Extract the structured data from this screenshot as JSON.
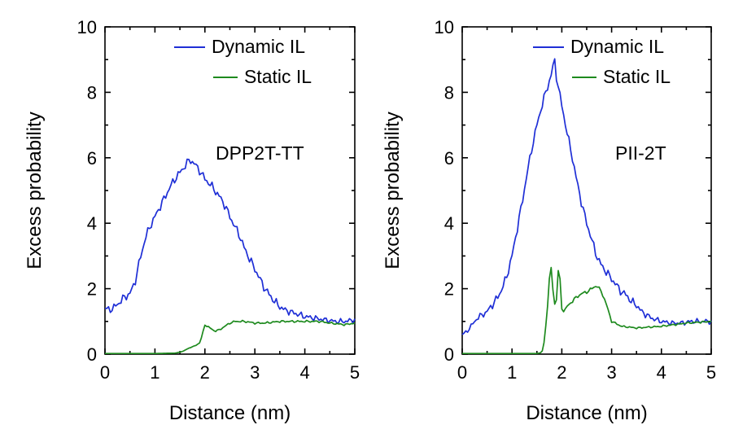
{
  "chart_data": [
    {
      "type": "line",
      "xlabel": "Distance (nm)",
      "ylabel": "Excess probability",
      "xlim": [
        0,
        5
      ],
      "ylim": [
        0,
        10
      ],
      "xticks": [
        "0",
        "1",
        "2",
        "3",
        "4",
        "5"
      ],
      "yticks": [
        "0",
        "2",
        "4",
        "6",
        "8",
        "10"
      ],
      "legend_placement": "top-right",
      "annotation": "DPP2T-TT",
      "series": [
        {
          "name": "Dynamic IL",
          "color": "#1f2fd6",
          "x": [
            0,
            0.1,
            0.2,
            0.3,
            0.4,
            0.5,
            0.6,
            0.7,
            0.8,
            0.9,
            1.0,
            1.1,
            1.2,
            1.3,
            1.4,
            1.5,
            1.6,
            1.7,
            1.8,
            1.9,
            2.0,
            2.1,
            2.2,
            2.3,
            2.4,
            2.5,
            2.6,
            2.7,
            2.8,
            2.9,
            3.0,
            3.1,
            3.2,
            3.3,
            3.4,
            3.5,
            3.6,
            3.7,
            3.8,
            3.9,
            4.0,
            4.2,
            4.4,
            4.6,
            4.8,
            5.0
          ],
          "y": [
            1.4,
            1.35,
            1.45,
            1.6,
            1.75,
            1.85,
            2.2,
            2.9,
            3.5,
            3.9,
            4.2,
            4.5,
            4.8,
            5.1,
            5.35,
            5.55,
            5.75,
            5.95,
            5.8,
            5.6,
            5.35,
            5.2,
            5.0,
            4.8,
            4.55,
            4.2,
            3.9,
            3.6,
            3.2,
            2.9,
            2.6,
            2.3,
            2.0,
            1.8,
            1.6,
            1.45,
            1.35,
            1.3,
            1.25,
            1.2,
            1.15,
            1.1,
            1.05,
            1.0,
            1.0,
            1.05
          ]
        },
        {
          "name": "Static IL",
          "color": "#1e8a1e",
          "x": [
            0,
            0.5,
            1.0,
            1.4,
            1.55,
            1.7,
            1.8,
            1.9,
            1.95,
            2.0,
            2.1,
            2.2,
            2.3,
            2.4,
            2.5,
            2.6,
            2.8,
            3.0,
            3.2,
            3.5,
            4.0,
            4.3,
            4.5,
            4.8,
            5.0
          ],
          "y": [
            0.02,
            0.02,
            0.02,
            0.03,
            0.08,
            0.2,
            0.25,
            0.35,
            0.6,
            0.9,
            0.8,
            0.7,
            0.75,
            0.85,
            0.95,
            1.0,
            1.0,
            0.95,
            0.95,
            1.0,
            1.0,
            1.0,
            0.95,
            0.9,
            0.95
          ]
        }
      ]
    },
    {
      "type": "line",
      "xlabel": "Distance (nm)",
      "ylabel": "Excess probability",
      "xlim": [
        0,
        5
      ],
      "ylim": [
        0,
        10
      ],
      "xticks": [
        "0",
        "1",
        "2",
        "3",
        "4",
        "5"
      ],
      "yticks": [
        "0",
        "2",
        "4",
        "6",
        "8",
        "10"
      ],
      "legend_placement": "top-right",
      "annotation": "PII-2T",
      "series": [
        {
          "name": "Dynamic IL",
          "color": "#1f2fd6",
          "x": [
            0,
            0.1,
            0.2,
            0.3,
            0.4,
            0.5,
            0.6,
            0.7,
            0.8,
            0.9,
            1.0,
            1.1,
            1.2,
            1.3,
            1.4,
            1.5,
            1.6,
            1.7,
            1.8,
            1.85,
            1.9,
            2.0,
            2.1,
            2.2,
            2.3,
            2.4,
            2.5,
            2.6,
            2.7,
            2.8,
            2.9,
            3.0,
            3.1,
            3.2,
            3.3,
            3.4,
            3.5,
            3.6,
            3.7,
            3.8,
            3.9,
            4.0,
            4.2,
            4.4,
            4.6,
            4.8,
            5.0
          ],
          "y": [
            0.6,
            0.7,
            0.9,
            1.1,
            1.2,
            1.3,
            1.5,
            1.7,
            2.0,
            2.4,
            3.0,
            3.8,
            4.6,
            5.5,
            6.3,
            7.0,
            7.6,
            8.1,
            8.6,
            9.05,
            8.4,
            7.6,
            6.8,
            6.1,
            5.3,
            4.6,
            4.0,
            3.5,
            3.0,
            2.7,
            2.5,
            2.3,
            2.1,
            1.9,
            1.8,
            1.6,
            1.5,
            1.3,
            1.2,
            1.1,
            1.05,
            1.0,
            0.95,
            0.95,
            1.0,
            1.0,
            1.0
          ]
        },
        {
          "name": "Static IL",
          "color": "#1e8a1e",
          "x": [
            0,
            0.5,
            1.0,
            1.5,
            1.6,
            1.65,
            1.7,
            1.75,
            1.78,
            1.82,
            1.86,
            1.9,
            1.93,
            1.97,
            2.0,
            2.05,
            2.1,
            2.2,
            2.3,
            2.4,
            2.5,
            2.6,
            2.7,
            2.8,
            2.9,
            3.0,
            3.2,
            3.5,
            4.0,
            4.5,
            5.0
          ],
          "y": [
            0.02,
            0.02,
            0.02,
            0.02,
            0.05,
            0.4,
            1.2,
            2.3,
            2.7,
            2.0,
            1.5,
            1.7,
            2.6,
            2.2,
            1.4,
            1.3,
            1.45,
            1.6,
            1.75,
            1.85,
            1.9,
            2.0,
            2.1,
            1.9,
            1.5,
            1.0,
            0.85,
            0.8,
            0.85,
            0.95,
            1.0
          ]
        }
      ]
    }
  ]
}
